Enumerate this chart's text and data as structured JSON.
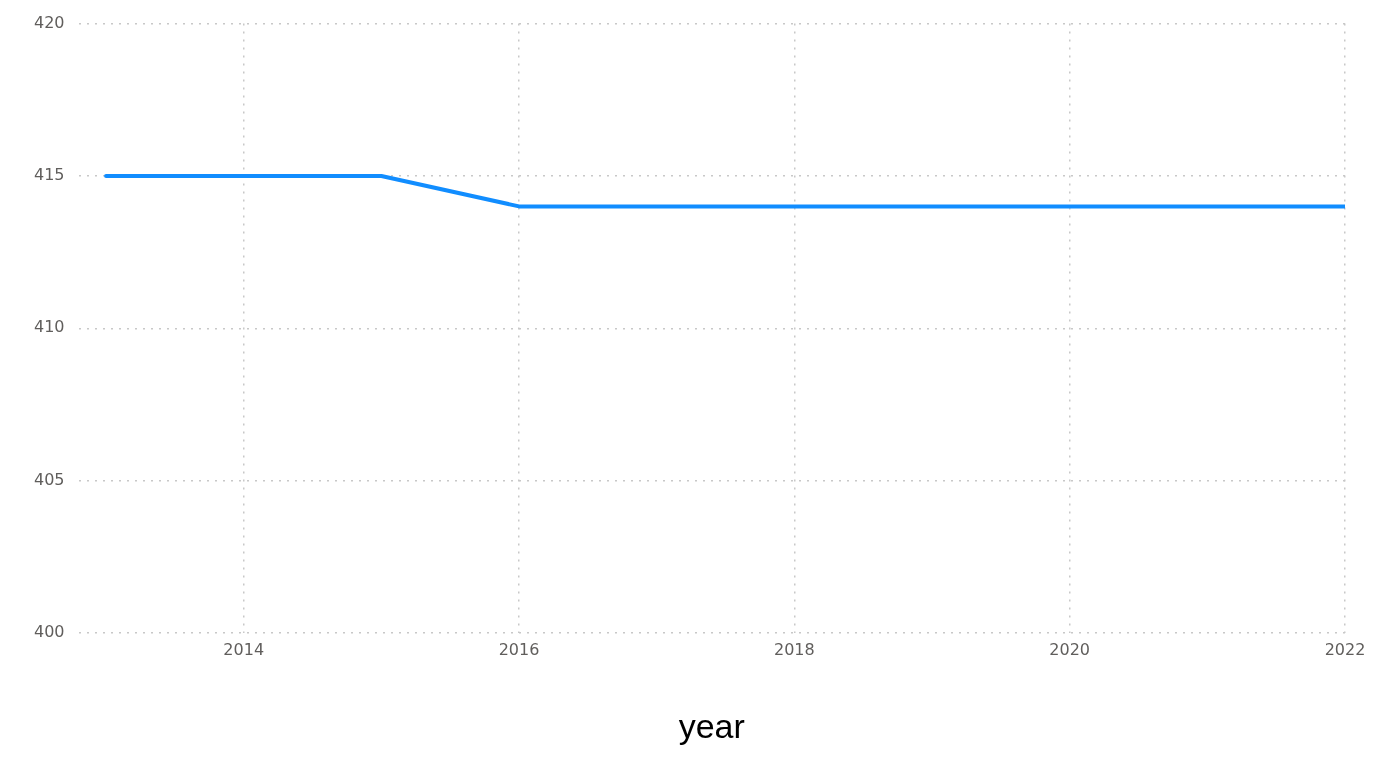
{
  "chart_data": {
    "type": "line",
    "xlabel": "year",
    "x": [
      2013,
      2014,
      2015,
      2016,
      2017,
      2018,
      2019,
      2020,
      2021,
      2022
    ],
    "series": [
      {
        "color": "#118dff",
        "values": [
          415,
          415,
          415,
          414,
          414,
          414,
          414,
          414,
          414,
          414
        ]
      }
    ],
    "xlim": [
      2012.8,
      2022
    ],
    "xticks": [
      2014,
      2016,
      2018,
      2020,
      2022
    ],
    "ylim": [
      400,
      420
    ],
    "yticks": [
      400,
      405,
      410,
      415,
      420
    ],
    "grid": true,
    "legend": false,
    "marker": "none",
    "line_style": "solid"
  }
}
